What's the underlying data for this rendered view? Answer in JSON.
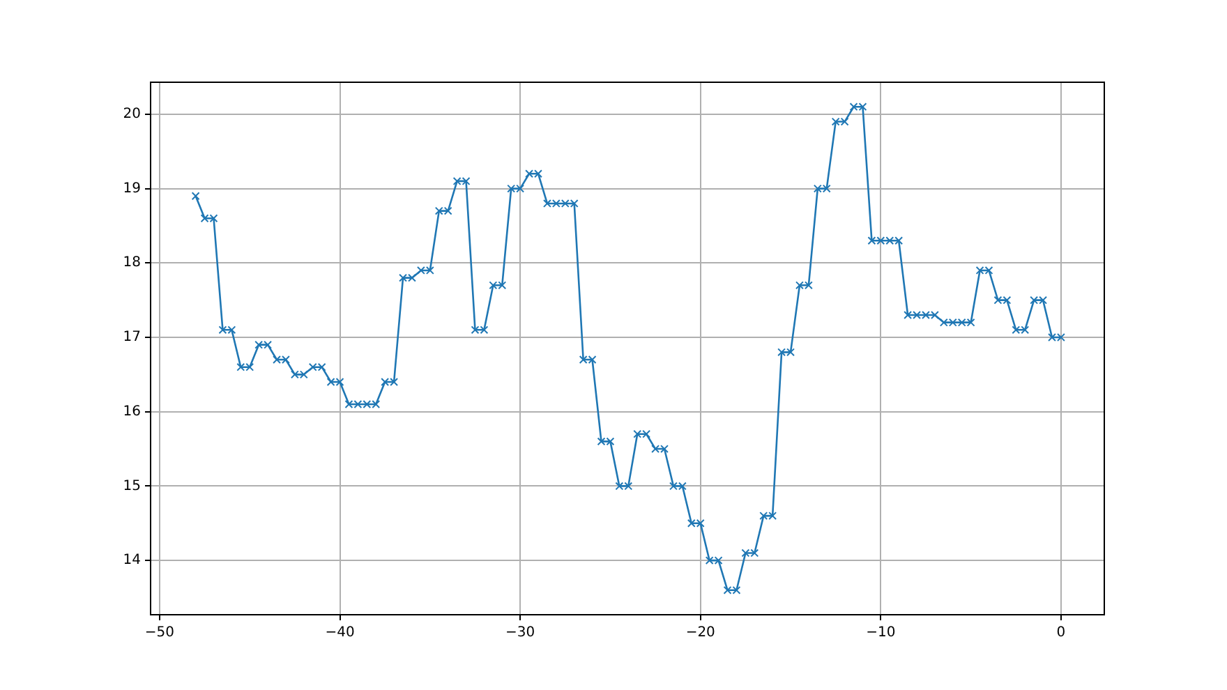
{
  "chart_data": {
    "type": "line",
    "marker": "cross",
    "grid": true,
    "legend": false,
    "x": [
      -48,
      -47.5,
      -47,
      -46.5,
      -46,
      -45.5,
      -45,
      -44.5,
      -44,
      -43.5,
      -43,
      -42.5,
      -42,
      -41.5,
      -41,
      -40.5,
      -40,
      -39.5,
      -39,
      -38.5,
      -38,
      -37.5,
      -37,
      -36.5,
      -36,
      -35.5,
      -35,
      -34.5,
      -34,
      -33.5,
      -33,
      -32.5,
      -32,
      -31.5,
      -31,
      -30.5,
      -30,
      -29.5,
      -29,
      -28.5,
      -28,
      -27.5,
      -27,
      -26.5,
      -26,
      -25.5,
      -25,
      -24.5,
      -24,
      -23.5,
      -23,
      -22.5,
      -22,
      -21.5,
      -21,
      -20.5,
      -20,
      -19.5,
      -19,
      -18.5,
      -18,
      -17.5,
      -17,
      -16.5,
      -16,
      -15.5,
      -15,
      -14.5,
      -14,
      -13.5,
      -13,
      -12.5,
      -12,
      -11.5,
      -11,
      -10.5,
      -10,
      -9.5,
      -9,
      -8.5,
      -8,
      -7.5,
      -7,
      -6.5,
      -6,
      -5.5,
      -5,
      -4.5,
      -4,
      -3.5,
      -3,
      -2.5,
      -2,
      -1.5,
      -1,
      -0.5,
      0
    ],
    "series": [
      {
        "color": "#1f77b4",
        "values": [
          18.9,
          18.6,
          18.6,
          17.1,
          17.1,
          16.6,
          16.6,
          16.9,
          16.9,
          16.7,
          16.7,
          16.5,
          16.5,
          16.6,
          16.6,
          16.4,
          16.4,
          16.1,
          16.1,
          16.1,
          16.1,
          16.4,
          16.4,
          17.8,
          17.8,
          17.9,
          17.9,
          18.7,
          18.7,
          19.1,
          19.1,
          17.1,
          17.1,
          17.7,
          17.7,
          19.0,
          19.0,
          19.2,
          19.2,
          18.8,
          18.8,
          18.8,
          18.8,
          16.7,
          16.7,
          15.6,
          15.6,
          15.0,
          15.0,
          15.7,
          15.7,
          15.5,
          15.5,
          15.0,
          15.0,
          14.5,
          14.5,
          14.0,
          14.0,
          13.6,
          13.6,
          14.1,
          14.1,
          14.6,
          14.6,
          16.8,
          16.8,
          17.7,
          17.7,
          19.0,
          19.0,
          19.9,
          19.9,
          20.1,
          20.1,
          18.3,
          18.3,
          18.3,
          18.3,
          17.3,
          17.3,
          17.3,
          17.3,
          17.2,
          17.2,
          17.2,
          17.2,
          17.9,
          17.9,
          17.5,
          17.5,
          17.1,
          17.1,
          17.5,
          17.5,
          17.0,
          17.0
        ]
      }
    ],
    "xlim": [
      -50.5,
      2.4
    ],
    "ylim": [
      13.27,
      20.43
    ],
    "xticks": [
      -50,
      -40,
      -30,
      -20,
      -10,
      0
    ],
    "yticks": [
      14,
      15,
      16,
      17,
      18,
      19,
      20
    ]
  }
}
